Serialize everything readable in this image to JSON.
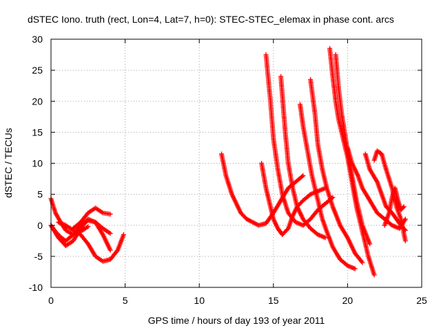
{
  "chart_data": {
    "type": "scatter",
    "title": "dSTEC Iono. truth (rect, Lon=4, Lat=7, h=0): STEC-STEC_elemax in phase cont. arcs",
    "xlabel": "GPS time / hours of day 193 of year 2011",
    "ylabel": "dSTEC  / TECUs",
    "xlim": [
      0,
      25
    ],
    "ylim": [
      -10,
      30
    ],
    "xticks": [
      "0",
      "5",
      "10",
      "15",
      "20",
      "25"
    ],
    "yticks": [
      "-10",
      "-5",
      "0",
      "5",
      "10",
      "15",
      "20",
      "25",
      "30"
    ],
    "grid": true,
    "marker": "plus",
    "color": "#ff0000",
    "series": [
      {
        "x": [
          0.0,
          0.3,
          0.7,
          1.0,
          1.5,
          2.0,
          2.5
        ],
        "y": [
          4.3,
          2.0,
          0.3,
          -0.8,
          -1.5,
          -1.0,
          -0.2
        ]
      },
      {
        "x": [
          0.0,
          0.3,
          0.7,
          1.0,
          1.5,
          2.0,
          2.5,
          3.0,
          3.5,
          4.0
        ],
        "y": [
          0.0,
          -1.0,
          -2.0,
          -2.5,
          -1.5,
          0.0,
          0.8,
          0.5,
          -0.5,
          -1.3
        ]
      },
      {
        "x": [
          0.0,
          0.5,
          1.0,
          1.5,
          2.0,
          2.5,
          3.0,
          3.5,
          4.0
        ],
        "y": [
          0.0,
          -2.0,
          -3.3,
          -2.5,
          -0.5,
          1.0,
          0.5,
          -1.5,
          -4.0
        ]
      },
      {
        "x": [
          0.5,
          1.0,
          1.5,
          2.0,
          2.5,
          3.0,
          3.5,
          4.0,
          4.5,
          4.9
        ],
        "y": [
          0.5,
          0.0,
          -0.8,
          -1.5,
          -3.0,
          -5.0,
          -5.8,
          -5.5,
          -4.0,
          -1.5
        ]
      },
      {
        "x": [
          1.5,
          2.0,
          2.5,
          3.0,
          3.5,
          4.0
        ],
        "y": [
          -0.5,
          0.5,
          2.0,
          2.8,
          2.0,
          1.8
        ]
      },
      {
        "x": [
          11.5,
          11.8,
          12.2,
          12.5,
          12.8,
          13.2,
          13.6,
          14.0,
          14.5,
          15.0,
          15.5,
          16.0,
          16.5,
          17.0
        ],
        "y": [
          11.5,
          8.0,
          5.0,
          3.5,
          2.0,
          1.0,
          0.5,
          0.0,
          0.3,
          2.0,
          4.0,
          6.0,
          7.0,
          8.0
        ]
      },
      {
        "x": [
          14.5,
          14.8,
          15.0,
          15.3,
          15.6,
          16.0,
          16.5,
          17.0,
          17.5,
          18.0,
          18.5,
          19.0
        ],
        "y": [
          27.5,
          20.0,
          14.0,
          9.0,
          5.0,
          2.0,
          0.5,
          0.0,
          1.0,
          2.5,
          3.5,
          4.5
        ]
      },
      {
        "x": [
          14.2,
          14.5,
          14.8,
          15.0,
          15.3,
          15.6,
          16.0,
          16.3,
          16.6,
          17.0,
          17.5,
          18.0,
          18.5
        ],
        "y": [
          10.0,
          6.0,
          3.0,
          1.0,
          -0.5,
          -1.5,
          -0.5,
          1.5,
          3.0,
          4.0,
          5.0,
          5.5,
          6.0
        ]
      },
      {
        "x": [
          15.5,
          15.8,
          16.0,
          16.3,
          16.6,
          17.0,
          17.5,
          18.0,
          18.5
        ],
        "y": [
          24.0,
          15.0,
          10.0,
          6.0,
          3.0,
          1.0,
          -0.5,
          -1.5,
          -2.0
        ]
      },
      {
        "x": [
          16.8,
          17.0,
          17.3,
          17.6,
          18.0,
          18.3,
          18.6,
          19.0,
          19.5,
          20.0,
          20.5
        ],
        "y": [
          19.5,
          16.0,
          12.0,
          8.0,
          4.0,
          1.0,
          -1.0,
          -3.5,
          -5.5,
          -6.5,
          -7.0
        ]
      },
      {
        "x": [
          17.5,
          17.8,
          18.0,
          18.3,
          18.6,
          19.0,
          19.5,
          20.0,
          20.5,
          21.0
        ],
        "y": [
          23.5,
          18.0,
          13.0,
          9.0,
          6.0,
          3.0,
          0.0,
          -2.0,
          -4.5,
          -6.0
        ]
      },
      {
        "x": [
          18.8,
          19.0,
          19.2,
          19.4,
          19.7,
          20.0,
          20.3,
          20.6,
          21.0,
          21.4,
          21.8
        ],
        "y": [
          28.5,
          24.0,
          20.0,
          17.0,
          14.0,
          11.0,
          7.0,
          3.0,
          -1.0,
          -5.0,
          -8.0
        ]
      },
      {
        "x": [
          19.2,
          19.4,
          19.6,
          19.8,
          20.0,
          20.3,
          20.6,
          21.0,
          21.5
        ],
        "y": [
          27.5,
          22.0,
          18.0,
          15.0,
          12.0,
          8.0,
          4.0,
          0.0,
          -3.0
        ]
      },
      {
        "x": [
          20.0,
          20.3,
          20.7,
          21.0,
          21.5,
          22.0,
          22.5,
          23.0,
          23.5,
          23.9
        ],
        "y": [
          12.5,
          10.0,
          8.0,
          6.0,
          4.0,
          2.0,
          1.0,
          0.0,
          -0.5,
          1.0
        ]
      },
      {
        "x": [
          21.2,
          21.5,
          22.0,
          22.3,
          22.6,
          23.0,
          23.3,
          23.6,
          23.9
        ],
        "y": [
          11.5,
          9.0,
          7.0,
          5.0,
          3.0,
          2.0,
          1.0,
          0.0,
          -0.8
        ]
      },
      {
        "x": [
          21.8,
          22.0,
          22.3,
          22.6,
          23.0,
          23.3,
          23.6,
          23.9
        ],
        "y": [
          10.5,
          12.0,
          11.5,
          9.0,
          6.0,
          3.0,
          1.0,
          -2.5
        ]
      },
      {
        "x": [
          22.5,
          22.8,
          23.0,
          23.2,
          23.4,
          23.6,
          23.8
        ],
        "y": [
          0.0,
          2.0,
          4.5,
          6.0,
          4.0,
          2.5,
          3.0
        ]
      }
    ]
  }
}
